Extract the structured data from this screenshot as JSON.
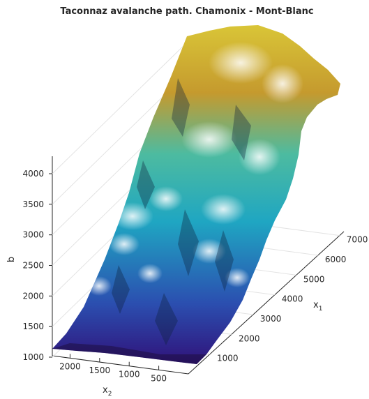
{
  "chart_data": {
    "type": "surface",
    "title": "Taconnaz avalanche path. Chamonix - Mont-Blanc",
    "xlabel": "x",
    "xlabel_sub": "1",
    "ylabel": "x",
    "ylabel_sub": "2",
    "zlabel": "b",
    "x1_ticks": [
      1000,
      2000,
      3000,
      4000,
      5000,
      6000,
      7000
    ],
    "x2_ticks": [
      500,
      1000,
      1500,
      2000
    ],
    "z_ticks": [
      1000,
      1500,
      2000,
      2500,
      3000,
      3500,
      4000
    ],
    "x1_range": [
      0,
      7200
    ],
    "x2_range": [
      0,
      2300
    ],
    "z_range": [
      1000,
      4300
    ],
    "colormap": [
      "#30127a",
      "#2a5bb0",
      "#20a9be",
      "#8ac07a",
      "#c9a12c",
      "#d6c436"
    ],
    "grid": true
  }
}
